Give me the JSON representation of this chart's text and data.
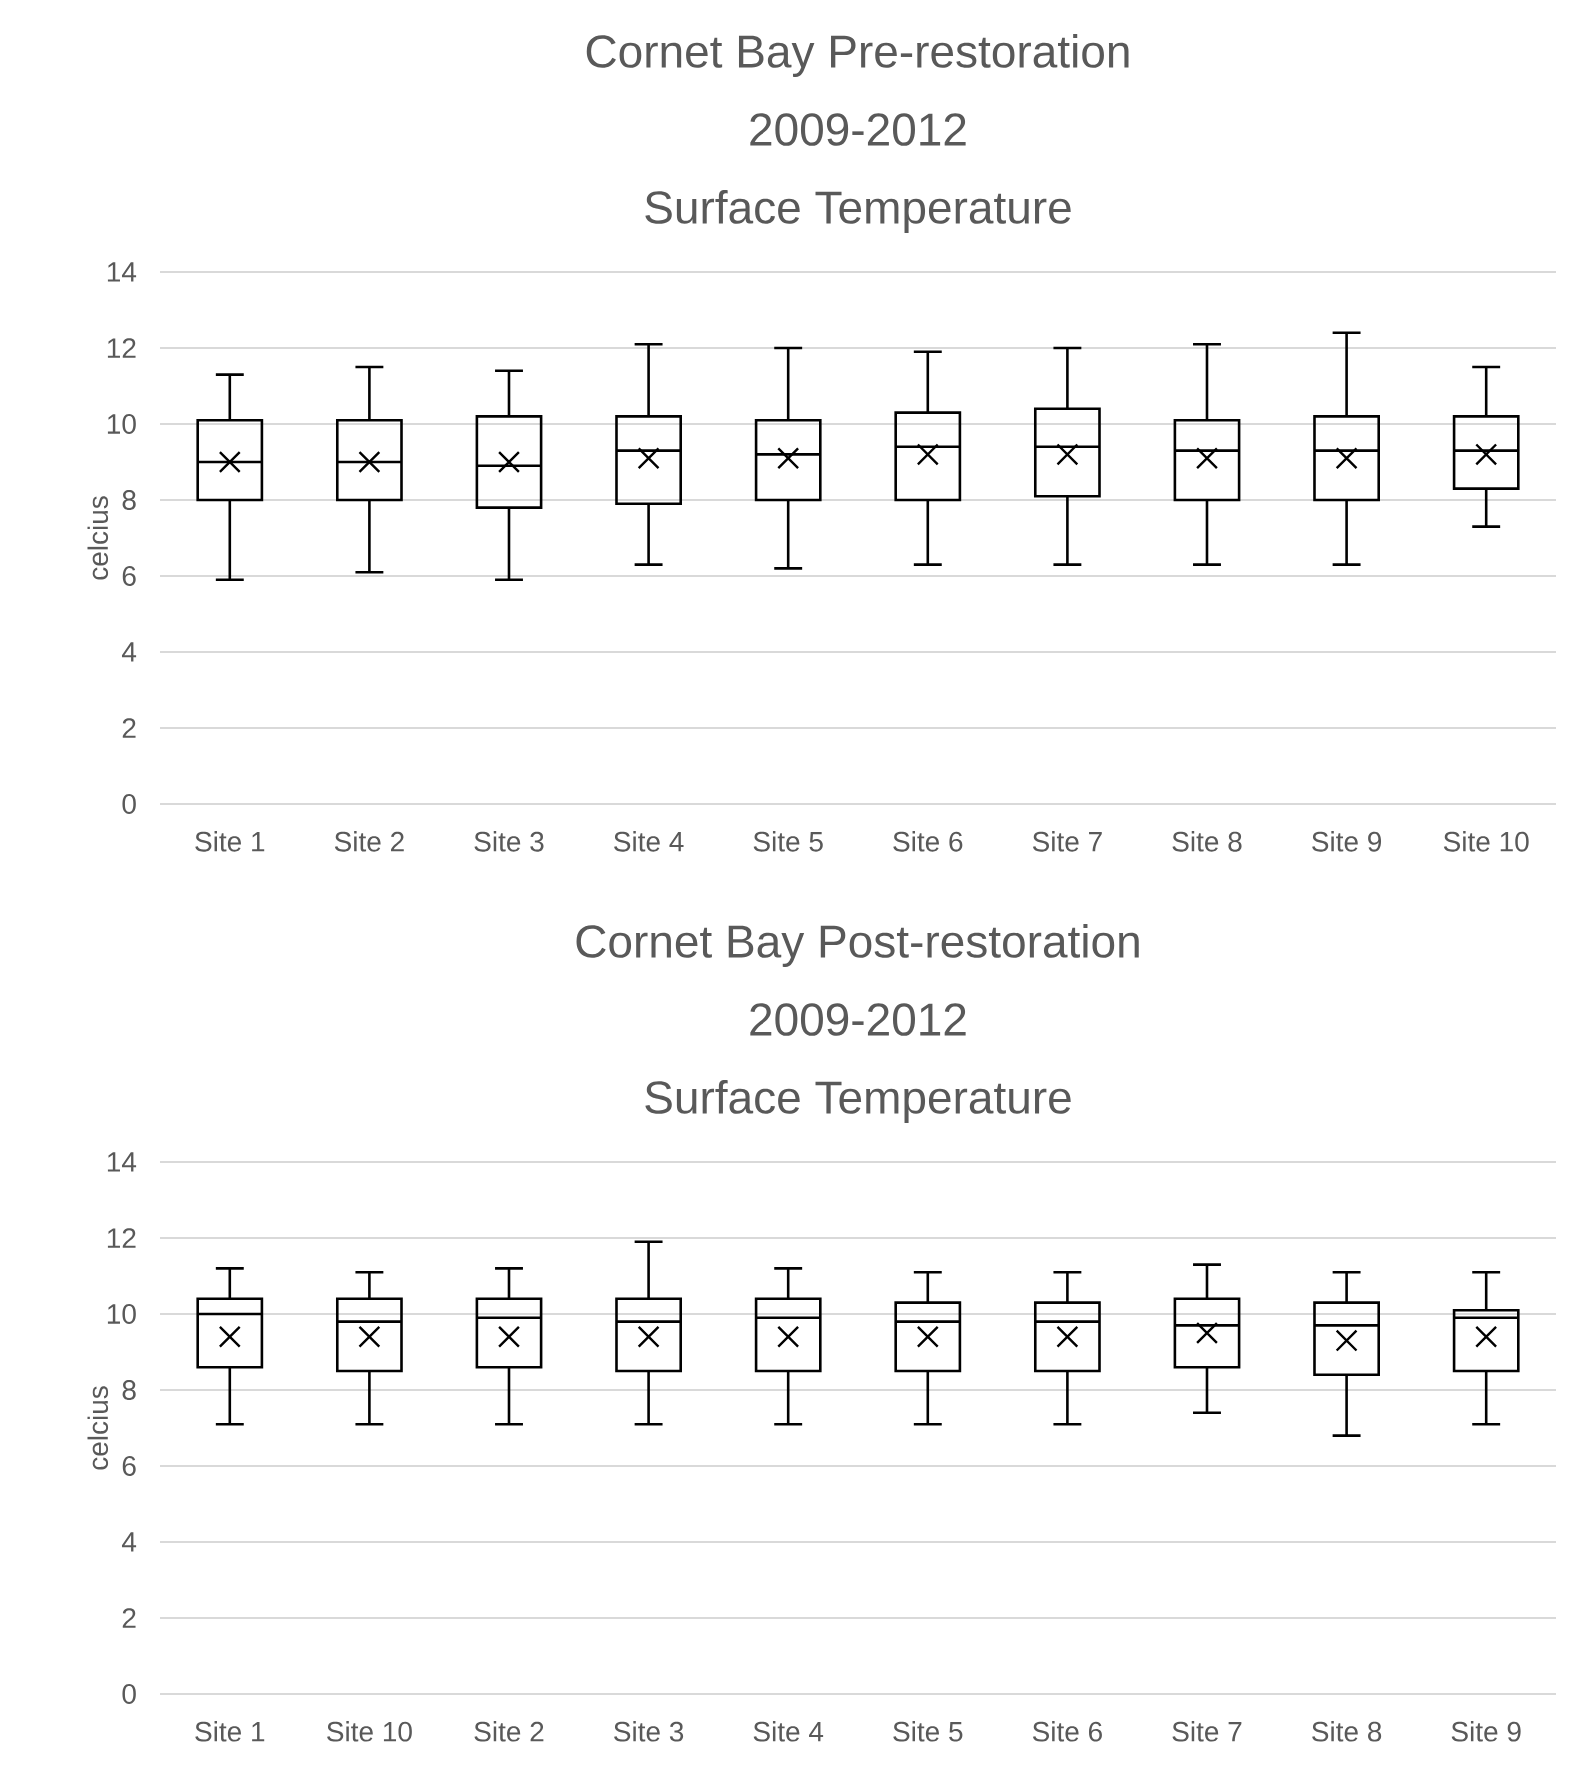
{
  "chart_data": [
    {
      "type": "box",
      "title": "Cornet Bay Pre-restoration 2009-2012",
      "subtitle": "Surface Temperature",
      "ylabel": "celcius",
      "categories": [
        "Site 1",
        "Site 2",
        "Site 3",
        "Site 4",
        "Site 5",
        "Site 6",
        "Site 7",
        "Site 8",
        "Site 9",
        "Site 10"
      ],
      "boxes": [
        {
          "low": 5.9,
          "q1": 8.0,
          "median": 9.0,
          "q3": 10.1,
          "high": 11.3,
          "mean": 9.0
        },
        {
          "low": 6.1,
          "q1": 8.0,
          "median": 9.0,
          "q3": 10.1,
          "high": 11.5,
          "mean": 9.0
        },
        {
          "low": 5.9,
          "q1": 7.8,
          "median": 8.9,
          "q3": 10.2,
          "high": 11.4,
          "mean": 9.0
        },
        {
          "low": 6.3,
          "q1": 7.9,
          "median": 9.3,
          "q3": 10.2,
          "high": 12.1,
          "mean": 9.1
        },
        {
          "low": 6.2,
          "q1": 8.0,
          "median": 9.2,
          "q3": 10.1,
          "high": 12.0,
          "mean": 9.1
        },
        {
          "low": 6.3,
          "q1": 8.0,
          "median": 9.4,
          "q3": 10.3,
          "high": 11.9,
          "mean": 9.2
        },
        {
          "low": 6.3,
          "q1": 8.1,
          "median": 9.4,
          "q3": 10.4,
          "high": 12.0,
          "mean": 9.2
        },
        {
          "low": 6.3,
          "q1": 8.0,
          "median": 9.3,
          "q3": 10.1,
          "high": 12.1,
          "mean": 9.1
        },
        {
          "low": 6.3,
          "q1": 8.0,
          "median": 9.3,
          "q3": 10.2,
          "high": 12.4,
          "mean": 9.1
        },
        {
          "low": 7.3,
          "q1": 8.3,
          "median": 9.3,
          "q3": 10.2,
          "high": 11.5,
          "mean": 9.2
        }
      ],
      "ylim": [
        0,
        14
      ],
      "yticks": [
        0,
        2,
        4,
        6,
        8,
        10,
        12,
        14
      ],
      "grid": "y"
    },
    {
      "type": "box",
      "title": "Cornet Bay Post-restoration 2009-2012",
      "subtitle": "Surface Temperature",
      "ylabel": "celcius",
      "categories": [
        "Site 1",
        "Site 10",
        "Site 2",
        "Site 3",
        "Site 4",
        "Site 5",
        "Site 6",
        "Site 7",
        "Site 8",
        "Site 9"
      ],
      "boxes": [
        {
          "low": 7.1,
          "q1": 8.6,
          "median": 10.0,
          "q3": 10.4,
          "high": 11.2,
          "mean": 9.4
        },
        {
          "low": 7.1,
          "q1": 8.5,
          "median": 9.8,
          "q3": 10.4,
          "high": 11.1,
          "mean": 9.4
        },
        {
          "low": 7.1,
          "q1": 8.6,
          "median": 9.9,
          "q3": 10.4,
          "high": 11.2,
          "mean": 9.4
        },
        {
          "low": 7.1,
          "q1": 8.5,
          "median": 9.8,
          "q3": 10.4,
          "high": 11.9,
          "mean": 9.4
        },
        {
          "low": 7.1,
          "q1": 8.5,
          "median": 9.9,
          "q3": 10.4,
          "high": 11.2,
          "mean": 9.4
        },
        {
          "low": 7.1,
          "q1": 8.5,
          "median": 9.8,
          "q3": 10.3,
          "high": 11.1,
          "mean": 9.4
        },
        {
          "low": 7.1,
          "q1": 8.5,
          "median": 9.8,
          "q3": 10.3,
          "high": 11.1,
          "mean": 9.4
        },
        {
          "low": 7.4,
          "q1": 8.6,
          "median": 9.7,
          "q3": 10.4,
          "high": 11.3,
          "mean": 9.5
        },
        {
          "low": 6.8,
          "q1": 8.4,
          "median": 9.7,
          "q3": 10.3,
          "high": 11.1,
          "mean": 9.3
        },
        {
          "low": 7.1,
          "q1": 8.5,
          "median": 9.9,
          "q3": 10.1,
          "high": 11.1,
          "mean": 9.4
        }
      ],
      "ylim": [
        0,
        14
      ],
      "yticks": [
        0,
        2,
        4,
        6,
        8,
        10,
        12,
        14
      ],
      "grid": "y"
    }
  ]
}
